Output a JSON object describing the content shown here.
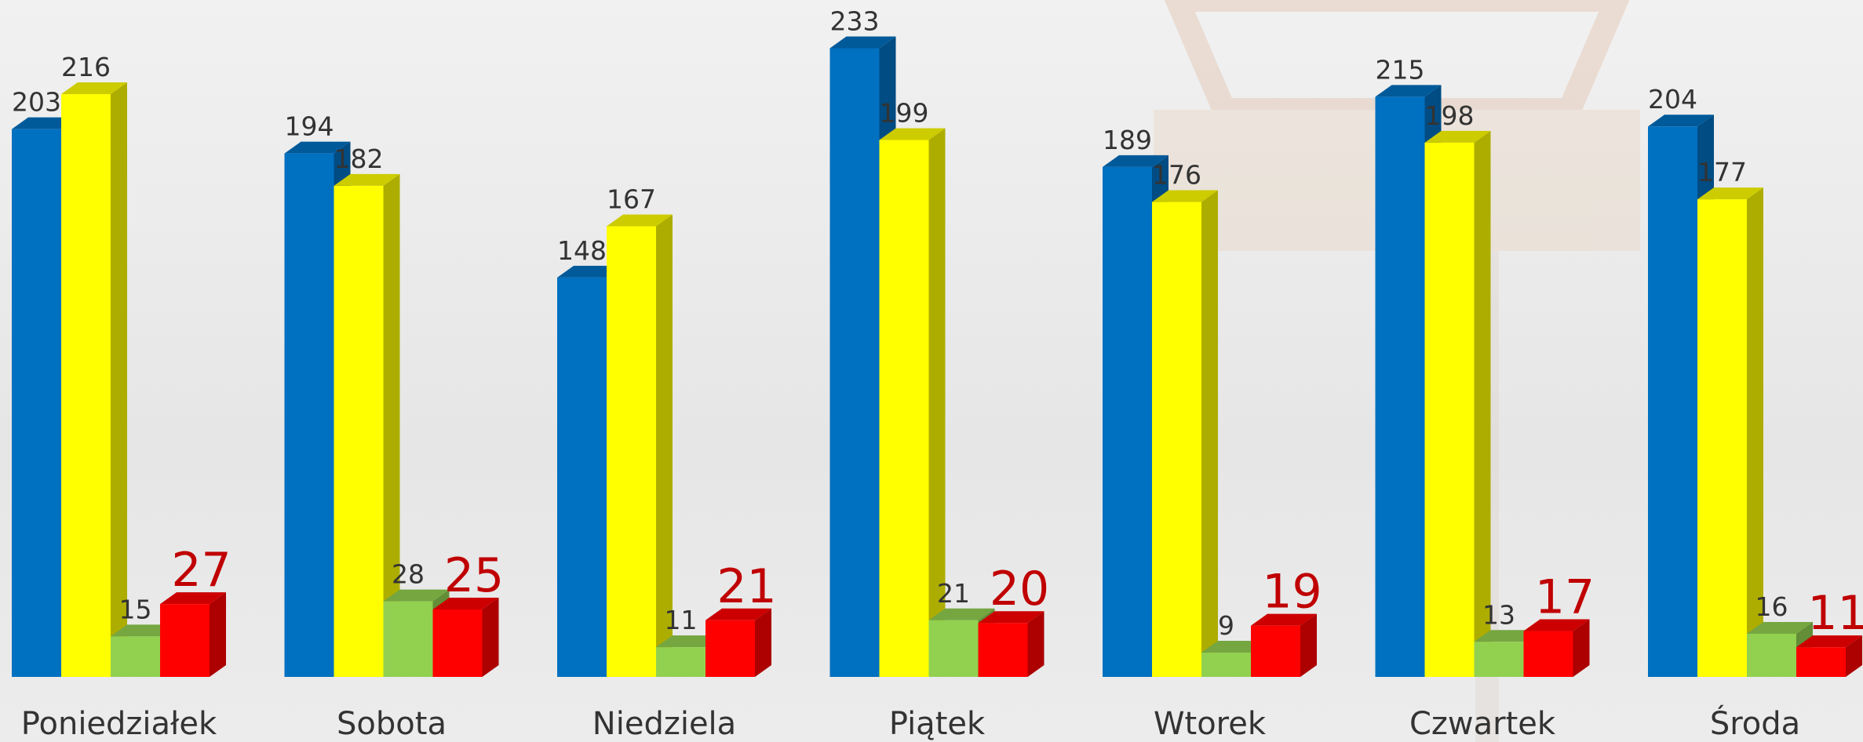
{
  "chart_data": {
    "type": "bar3d",
    "categories": [
      "Poniedziałek",
      "Sobota",
      "Niedziela",
      "Piątek",
      "Wtorek",
      "Czwartek",
      "Środa"
    ],
    "series": [
      {
        "color": "#0070c0",
        "values": [
          203,
          194,
          148,
          233,
          189,
          215,
          204
        ]
      },
      {
        "color": "#ffff00",
        "values": [
          216,
          182,
          167,
          199,
          176,
          198,
          177
        ]
      },
      {
        "color": "#92d050",
        "values": [
          15,
          28,
          11,
          21,
          9,
          13,
          16
        ]
      },
      {
        "color": "#ff0000",
        "values": [
          27,
          25,
          21,
          20,
          19,
          17,
          11
        ]
      }
    ]
  }
}
